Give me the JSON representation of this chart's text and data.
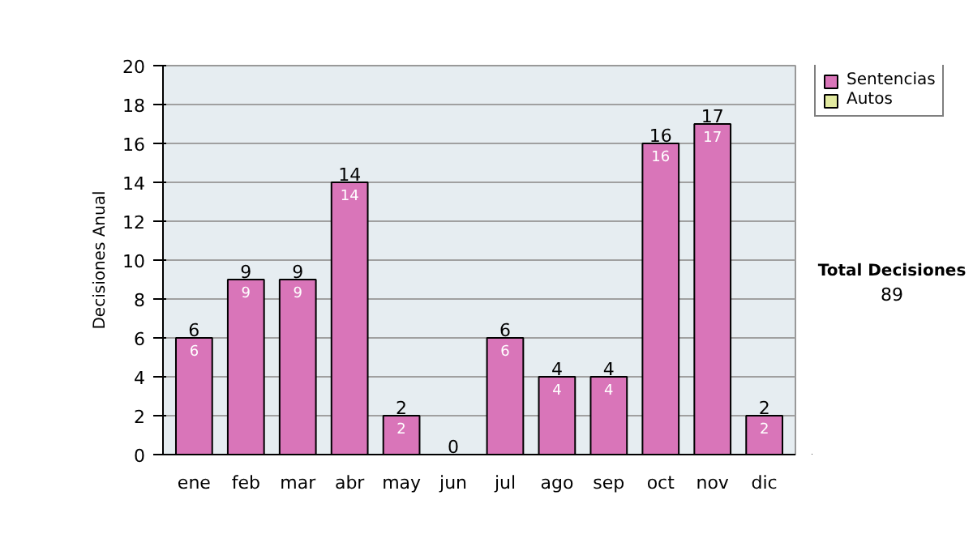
{
  "chart_data": {
    "type": "bar",
    "stacked": true,
    "ylabel": "Decisiones Anual",
    "categories": [
      "ene",
      "feb",
      "mar",
      "abr",
      "may",
      "jun",
      "jul",
      "ago",
      "sep",
      "oct",
      "nov",
      "dic"
    ],
    "series": [
      {
        "name": "Sentencias",
        "color": "#d975b9",
        "values": [
          6,
          9,
          9,
          14,
          2,
          0,
          6,
          4,
          4,
          16,
          17,
          2
        ],
        "value_labels": [
          "6",
          "9",
          "9",
          "14",
          "2",
          null,
          "6",
          "4",
          "4",
          "16",
          "17",
          "2"
        ]
      },
      {
        "name": "Autos",
        "color": "#e2eaa0",
        "values": [
          0,
          0,
          0,
          0,
          0,
          0,
          0,
          0,
          0,
          0,
          0,
          0
        ]
      }
    ],
    "totals": [
      "6",
      "9",
      "9",
      "14",
      "2",
      "0",
      "6",
      "4",
      "4",
      "16",
      "17",
      "2"
    ],
    "ylim": [
      0,
      20
    ],
    "yticks": [
      0,
      2,
      4,
      6,
      8,
      10,
      12,
      14,
      16,
      18,
      20
    ],
    "grid": "y",
    "legend": "right",
    "annotations": [
      "Total Decisiones",
      "89"
    ]
  }
}
